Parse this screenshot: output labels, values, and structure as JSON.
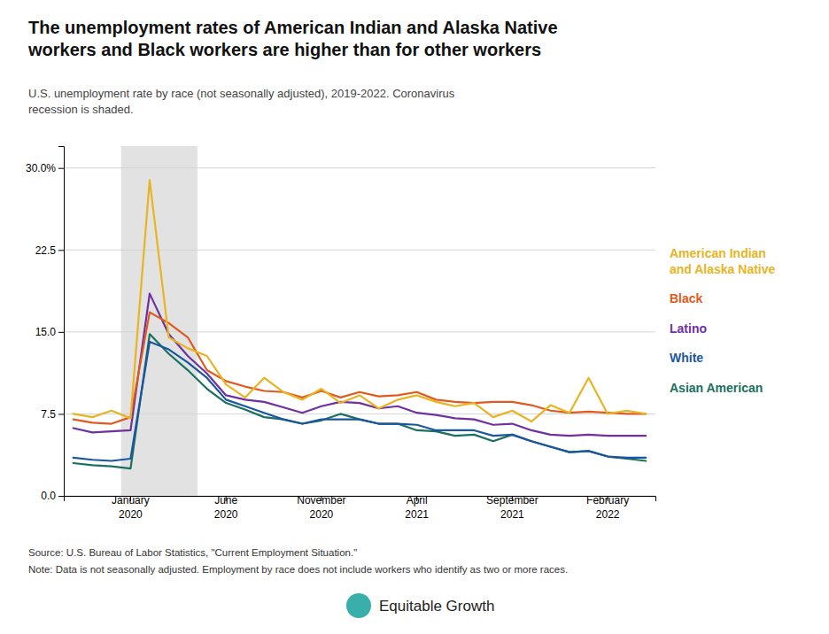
{
  "chart_data": {
    "type": "line",
    "title": "The unemployment rates of American Indian and Alaska Native\nworkers and Black workers are higher than for other workers",
    "subtitle": "U.S. unemployment rate by race (not seasonally adjusted), 2019-2022. Coronavirus\nrecession is shaded.",
    "source": "Source: U.S. Bureau of Labor Statistics, \"Current Employment Situation.\"",
    "note": "Note: Data is not seasonally adjusted. Employment by race does not include workers who identify as two or more races.",
    "credit": "Equitable Growth",
    "categories": [
      null,
      null,
      null,
      "January\n2020",
      null,
      null,
      null,
      null,
      "June\n2020",
      null,
      null,
      null,
      null,
      "November\n2020",
      null,
      null,
      null,
      null,
      "April\n2021",
      null,
      null,
      null,
      null,
      "September\n2021",
      null,
      null,
      null,
      null,
      "February\n2022",
      null,
      null
    ],
    "shaded_span": [
      3,
      7
    ],
    "series": [
      {
        "name": "American Indian\nand Alaska Native",
        "color": "#e8b422",
        "values": [
          7.5,
          7.2,
          7.8,
          7.1,
          28.9,
          14.5,
          13.5,
          12.8,
          10.2,
          9.0,
          10.8,
          9.5,
          8.8,
          9.8,
          8.5,
          9.2,
          8.0,
          8.8,
          9.2,
          8.6,
          8.2,
          8.5,
          7.2,
          7.8,
          6.8,
          8.3,
          7.6,
          10.8,
          7.5,
          7.8,
          7.5
        ]
      },
      {
        "name": "Black",
        "color": "#e05a20",
        "values": [
          7.0,
          6.7,
          6.6,
          7.2,
          16.8,
          15.8,
          14.5,
          11.5,
          10.5,
          10.0,
          9.6,
          9.5,
          9.0,
          9.6,
          9.0,
          9.5,
          9.1,
          9.2,
          9.5,
          8.8,
          8.6,
          8.5,
          8.6,
          8.6,
          8.3,
          7.8,
          7.6,
          7.7,
          7.6,
          7.5,
          7.5
        ]
      },
      {
        "name": "Latino",
        "color": "#7030a0",
        "values": [
          6.2,
          5.8,
          5.9,
          6.0,
          18.5,
          14.8,
          12.8,
          11.2,
          9.2,
          8.8,
          8.6,
          8.1,
          7.6,
          8.2,
          8.6,
          8.5,
          8.0,
          8.2,
          7.6,
          7.4,
          7.1,
          7.0,
          6.5,
          6.6,
          6.0,
          5.6,
          5.5,
          5.6,
          5.5,
          5.5,
          5.5
        ]
      },
      {
        "name": "White",
        "color": "#1a56a0",
        "values": [
          3.5,
          3.3,
          3.2,
          3.4,
          14.1,
          13.4,
          12.2,
          10.8,
          8.8,
          8.2,
          7.6,
          7.0,
          6.6,
          7.0,
          7.0,
          7.0,
          6.6,
          6.6,
          6.5,
          6.0,
          6.0,
          6.0,
          5.5,
          5.6,
          5.0,
          4.5,
          4.0,
          4.1,
          3.6,
          3.5,
          3.5
        ]
      },
      {
        "name": "Asian American",
        "color": "#197060",
        "values": [
          3.0,
          2.8,
          2.7,
          2.5,
          14.8,
          13.0,
          11.5,
          9.8,
          8.5,
          7.9,
          7.2,
          7.0,
          6.6,
          6.9,
          7.5,
          7.0,
          6.6,
          6.6,
          6.0,
          5.9,
          5.5,
          5.6,
          5.0,
          5.6,
          5.0,
          4.5,
          4.0,
          4.1,
          3.6,
          3.4,
          3.2
        ]
      }
    ],
    "ylim": [
      0,
      32
    ],
    "yticks": [
      {
        "value": 0,
        "label": "0.0"
      },
      7.5,
      {
        "value": 15,
        "label": "15.0"
      },
      22.5,
      {
        "value": 30,
        "label": "30.0%"
      }
    ],
    "grid": true,
    "legend": "right"
  }
}
